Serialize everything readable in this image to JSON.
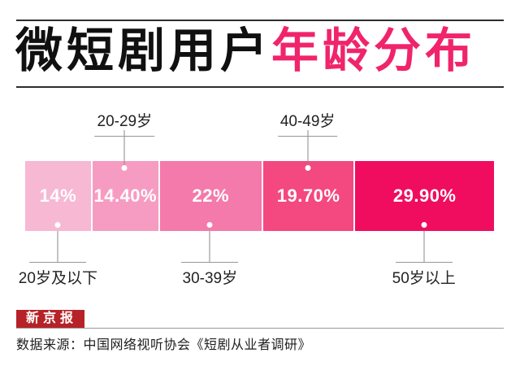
{
  "header": {
    "title_black": "微短剧用户",
    "title_pink": "年龄分布",
    "accent_color": "#F0246B"
  },
  "chart_data": {
    "type": "bar",
    "subtype": "horizontal-stacked-single-bar",
    "title": "微短剧用户年龄分布",
    "unit": "%",
    "total": 100,
    "grid": false,
    "legend_position": "none",
    "segments": [
      {
        "label": "20岁及以下",
        "value": 14,
        "value_label": "14%",
        "color": "#F7B8D3",
        "age_label_position": "below"
      },
      {
        "label": "20-29岁",
        "value": 14.4,
        "value_label": "14.40%",
        "color": "#F69CC2",
        "age_label_position": "above"
      },
      {
        "label": "30-39岁",
        "value": 22,
        "value_label": "22%",
        "color": "#F37AAA",
        "age_label_position": "below"
      },
      {
        "label": "40-49岁",
        "value": 19.7,
        "value_label": "19.70%",
        "color": "#F44880",
        "age_label_position": "above"
      },
      {
        "label": "50岁以上",
        "value": 29.9,
        "value_label": "29.90%",
        "color": "#F00D5F",
        "age_label_position": "below"
      }
    ]
  },
  "footer": {
    "brand": "新京报",
    "brand_bg_color": "#B62227",
    "source": "数据来源：中国网络视听协会《短剧从业者调研》"
  }
}
